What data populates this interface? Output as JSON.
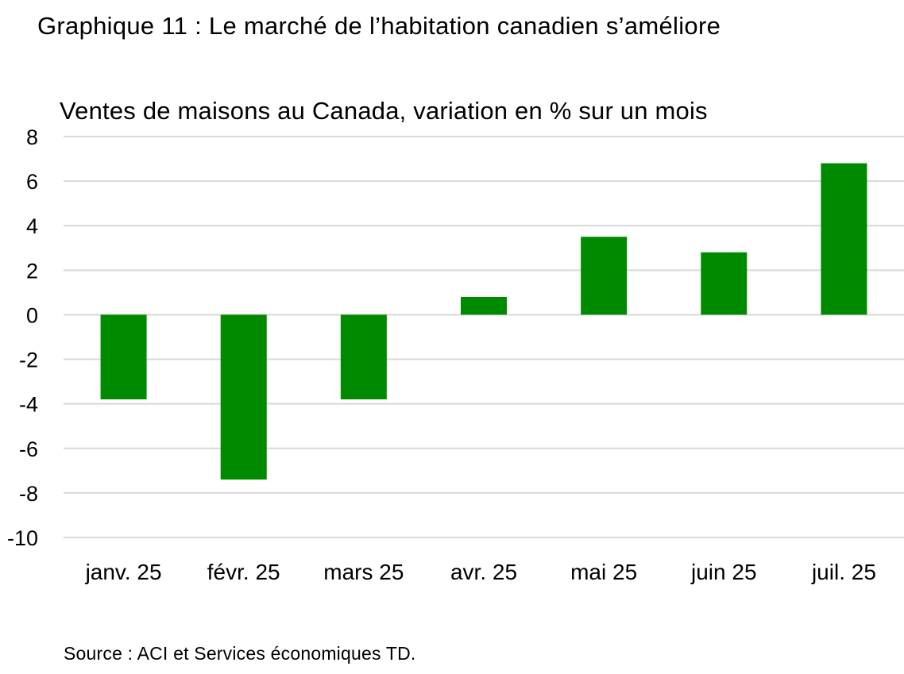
{
  "title": "Graphique 11 : Le marché de l’habitation canadien s’améliore",
  "source": "Source : ACI et Services économiques TD.",
  "colors": {
    "bar": "#008a00",
    "grid": "#d9d9d9",
    "text": "#000000"
  },
  "chart_data": {
    "type": "bar",
    "title": "Graphique 11 : Le marché de l’habitation canadien s’améliore",
    "subtitle": "Ventes de maisons au Canada, variation en % sur un mois",
    "xlabel": "",
    "ylabel": "",
    "ylim": [
      -10,
      8
    ],
    "yticks": [
      8,
      6,
      4,
      2,
      0,
      -2,
      -4,
      -6,
      -8,
      -10
    ],
    "grid": true,
    "legend": "none",
    "categories": [
      "janv. 25",
      "févr. 25",
      "mars 25",
      "avr. 25",
      "mai 25",
      "juin 25",
      "juil. 25"
    ],
    "values": [
      -3.8,
      -7.4,
      -3.8,
      0.8,
      3.5,
      2.8,
      6.8
    ]
  }
}
